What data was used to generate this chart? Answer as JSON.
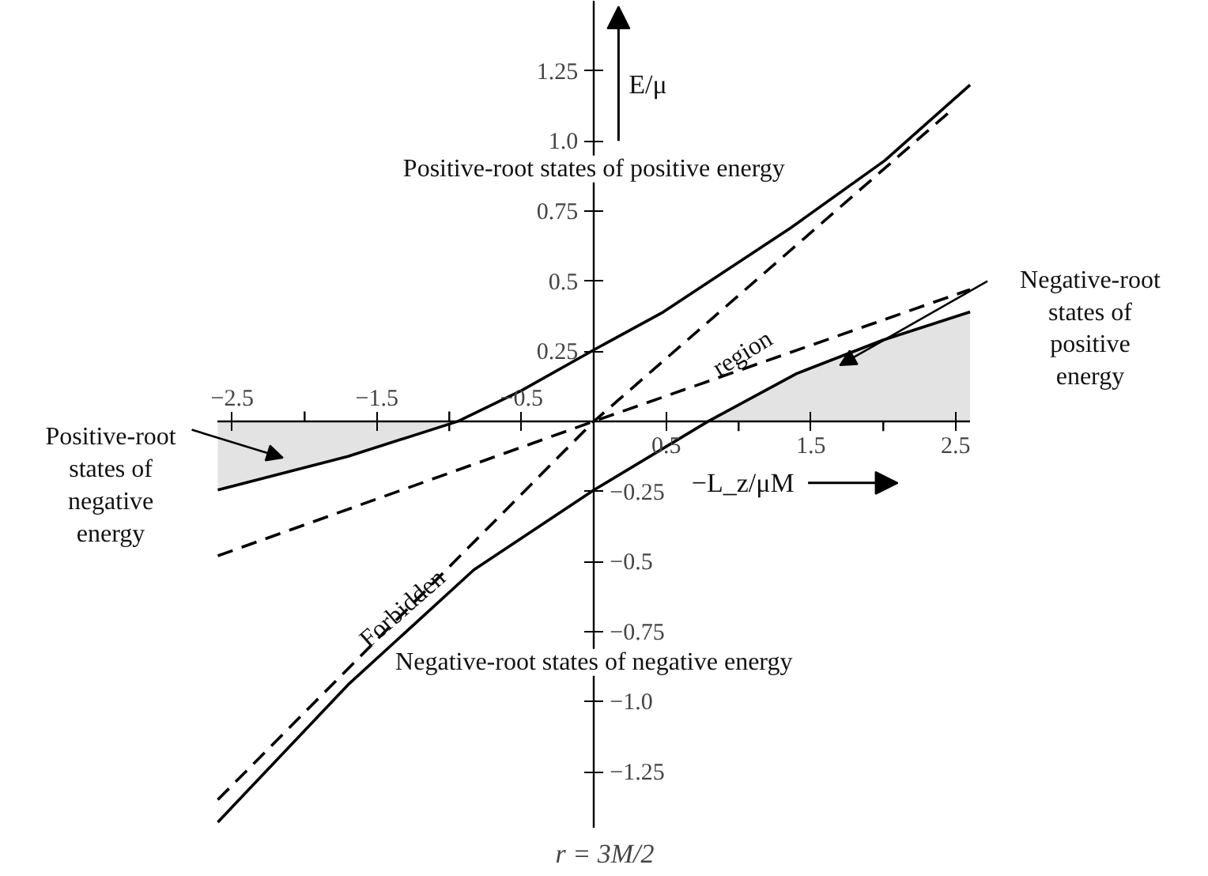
{
  "chart_data": {
    "type": "line",
    "xlabel": "−L_z/μM",
    "y2label": "E/μ",
    "xlim": [
      -2.6,
      2.6
    ],
    "ylim": [
      -1.45,
      1.5
    ],
    "x2lim": [
      -2.6,
      2.6
    ],
    "y2lim": [
      -1.45,
      1.5
    ],
    "xticks": [
      {
        "value": -2,
        "label": null
      },
      {
        "value": -1,
        "label": null
      },
      0.5,
      {
        "value": 1,
        "label": null
      },
      1.5,
      {
        "value": 2,
        "label": null
      },
      2.5
    ],
    "x2ticks": [
      {
        "value": -2.5,
        "label": "−2.5"
      },
      {
        "value": -1.5,
        "label": "−1.5"
      },
      {
        "value": -0.5,
        "label": "−0.5"
      }
    ],
    "yticks": [
      0.25,
      0.5,
      0.75,
      {
        "value": 1,
        "label": "1.0"
      },
      1.25
    ],
    "y2ticks": [
      {
        "value": -1.25,
        "label": "−1.25"
      },
      {
        "value": -1,
        "label": "−1.0"
      },
      {
        "value": -0.75,
        "label": "−0.75"
      },
      {
        "value": -0.5,
        "label": "−0.5"
      },
      {
        "value": -0.25,
        "label": "−0.25"
      }
    ],
    "grid": false,
    "marker": "none",
    "series": [
      {
        "type": "area",
        "color": "#e3e3e3",
        "x": [
          -2.6,
          -1.7,
          -0.94
        ],
        "values": [
          -0.245,
          -0.125,
          0
        ]
      },
      {
        "type": "area",
        "color": "#e3e3e3",
        "x": [
          0.79,
          1.4,
          2.0,
          2.6
        ],
        "values": [
          0,
          0.17,
          0.29,
          0.39
        ]
      },
      {
        "type": "line",
        "color": "#000000",
        "line_style": "solid",
        "x": [
          -2.6,
          -1.7,
          -0.94,
          -0.5,
          0,
          0.48,
          1.36,
          2.01,
          2.6
        ],
        "values": [
          -0.245,
          -0.125,
          0,
          0.11,
          0.255,
          0.39,
          0.69,
          0.93,
          1.2
        ]
      },
      {
        "type": "line",
        "color": "#000000",
        "line_style": "solid",
        "x": [
          -2.6,
          -1.7,
          -0.83,
          0,
          0.79,
          1.4,
          2.0,
          2.6
        ],
        "values": [
          -1.43,
          -0.94,
          -0.53,
          -0.245,
          0,
          0.17,
          0.29,
          0.39
        ]
      },
      {
        "type": "line",
        "color": "#000000",
        "line_style": "dashed",
        "x": [
          -2.6,
          0,
          2.45
        ],
        "values": [
          -1.35,
          0,
          1.1
        ]
      },
      {
        "type": "line",
        "color": "#000000",
        "line_style": "dashed",
        "x": [
          -2.6,
          0,
          2.6
        ],
        "values": [
          -0.48,
          0,
          0.47
        ]
      }
    ],
    "annotations": [
      "Positive-root states of positive energy",
      "Negative-root states of negative energy",
      "Positive-root\nstates of\nnegative\nenergy",
      "Negative-root\nstates of\npositive\nenergy",
      "Forbidden",
      "region",
      "r = 3M/2"
    ]
  }
}
